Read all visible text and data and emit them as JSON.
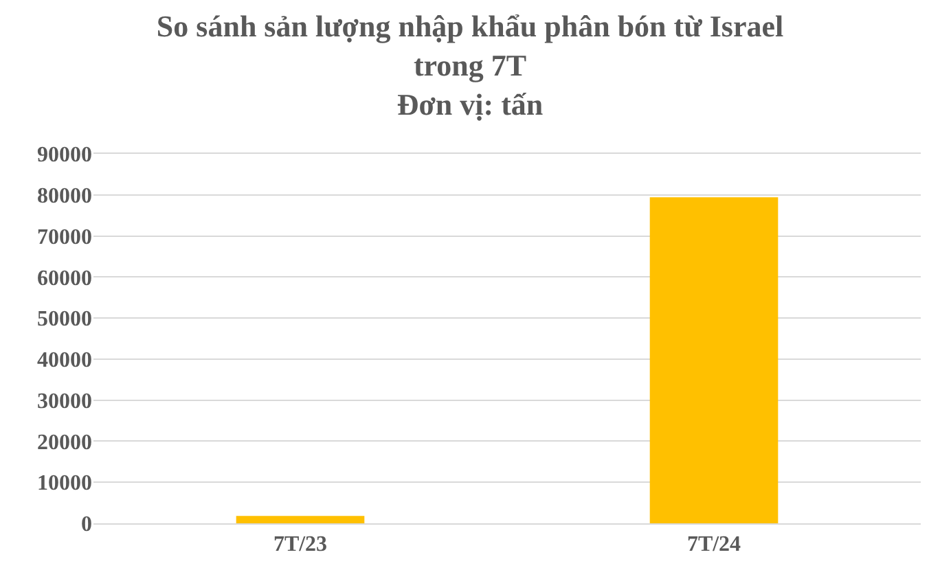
{
  "chart_data": {
    "type": "bar",
    "title": "So sánh sản lượng nhập khẩu phân bón từ Israel\ntrong 7T\nĐơn vị: tấn",
    "categories": [
      "7T/23",
      "7T/24"
    ],
    "values": [
      1800,
      79400
    ],
    "color": "#ffc000",
    "ylim": [
      0,
      90000
    ],
    "yticks": [
      0,
      10000,
      20000,
      30000,
      40000,
      50000,
      60000,
      70000,
      80000,
      90000
    ],
    "grid": "y"
  }
}
